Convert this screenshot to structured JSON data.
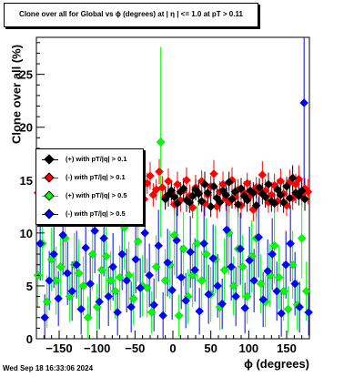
{
  "title": "Clone  over all for Global vs ϕ (degrees) at |  η | <= 1.0 at pT > 0.11",
  "timestamp": "Wed Sep 18 16:33:06 2024",
  "chart_data": {
    "type": "scatter",
    "xlabel": "ϕ (degrees)",
    "ylabel": "Clone  over all (%)",
    "xlim": [
      -180,
      180
    ],
    "ylim": [
      0,
      28.5
    ],
    "xticks": [
      -150,
      -100,
      -50,
      0,
      50,
      100,
      150
    ],
    "xtick_labels": [
      "−150",
      "−100",
      "−50",
      "0",
      "50",
      "100",
      "150"
    ],
    "yticks": [
      0,
      5,
      10,
      15,
      20,
      25
    ],
    "ytick_labels": [
      "0",
      "5",
      "10",
      "15",
      "20",
      "25"
    ],
    "legend_position": "left-middle",
    "series": [
      {
        "name": "(+) with pT/|q| > 0.1",
        "color": "#000000",
        "x": [
          -10,
          -6,
          -2,
          2,
          6,
          10,
          14,
          18,
          22,
          26,
          30,
          34,
          38,
          42,
          46,
          50,
          54,
          58,
          62,
          66,
          70,
          74,
          78,
          82,
          86,
          90,
          94,
          98,
          102,
          106,
          110,
          114,
          118,
          122,
          126,
          130,
          134,
          138,
          142,
          146,
          150,
          154,
          158,
          162,
          166,
          170,
          174
        ],
        "y": [
          13.2,
          13.6,
          14.0,
          13.4,
          12.8,
          13.9,
          14.2,
          13.1,
          12.9,
          13.5,
          14.1,
          13.7,
          13.0,
          14.6,
          13.8,
          12.5,
          14.4,
          13.3,
          12.9,
          14.0,
          13.6,
          14.8,
          13.2,
          13.9,
          12.7,
          14.2,
          13.5,
          13.1,
          14.0,
          13.8,
          12.6,
          14.3,
          13.7,
          13.4,
          14.6,
          13.0,
          12.8,
          14.1,
          13.6,
          12.9,
          14.4,
          13.3,
          15.2,
          13.8,
          13.5,
          14.0,
          13.2
        ],
        "err": [
          1.0,
          1.1,
          0.9,
          1.0,
          1.2,
          0.9,
          1.0,
          1.1,
          1.0,
          0.9,
          1.0,
          1.1,
          1.0,
          1.2,
          0.9,
          1.0,
          1.1,
          1.0,
          0.9,
          1.0,
          1.1,
          1.0,
          0.9,
          1.0,
          1.2,
          1.0,
          0.9,
          1.1,
          1.0,
          1.0,
          1.1,
          0.9,
          1.0,
          1.0,
          1.1,
          1.0,
          0.9,
          1.0,
          1.1,
          1.0,
          0.9,
          1.0,
          1.2,
          1.0,
          0.9,
          1.0,
          1.1
        ]
      },
      {
        "name": "(-) with pT/|q| > 0.1",
        "color": "#ff0000",
        "x": [
          -178,
          -174,
          -170,
          -166,
          -162,
          -158,
          -154,
          -150,
          -146,
          -142,
          -138,
          -134,
          -130,
          -126,
          -122,
          -118,
          -114,
          -110,
          -106,
          -102,
          -98,
          -94,
          -90,
          -86,
          -82,
          -78,
          -74,
          -70,
          -66,
          -62,
          -58,
          -54,
          -50,
          -46,
          -42,
          -38,
          -34,
          -30,
          -26,
          -22,
          -18,
          -14,
          -10,
          -6,
          -2,
          2,
          6,
          10,
          14,
          18,
          22,
          26,
          30,
          34,
          38,
          42,
          46,
          50,
          54,
          58,
          62,
          66,
          70,
          74,
          78,
          82,
          86,
          90,
          94,
          98,
          102,
          106,
          110,
          114,
          118,
          122,
          126,
          130,
          134,
          138,
          142,
          146,
          150,
          154,
          158,
          162,
          166,
          170,
          174,
          178
        ],
        "y": [
          13.8,
          14.4,
          13.2,
          14.9,
          13.6,
          12.8,
          14.2,
          13.5,
          14.8,
          13.0,
          14.5,
          13.9,
          12.7,
          14.1,
          15.3,
          13.4,
          14.7,
          13.1,
          12.6,
          14.3,
          13.8,
          14.9,
          13.3,
          12.9,
          14.6,
          13.7,
          14.2,
          13.0,
          14.8,
          15.1,
          13.5,
          12.8,
          14.4,
          13.9,
          14.0,
          13.2,
          14.7,
          15.4,
          13.6,
          14.1,
          15.8,
          14.3,
          13.4,
          14.9,
          13.8,
          12.7,
          14.6,
          13.1,
          14.0,
          15.0,
          13.5,
          12.4,
          14.3,
          13.8,
          14.9,
          12.8,
          13.6,
          14.4,
          15.6,
          12.5,
          13.9,
          14.6,
          13.2,
          12.9,
          15.0,
          13.4,
          14.1,
          12.6,
          13.8,
          14.7,
          13.5,
          12.2,
          14.3,
          13.9,
          15.5,
          14.0,
          12.9,
          13.6,
          14.5,
          13.0,
          14.9,
          13.7,
          12.6,
          14.8,
          13.3,
          14.6,
          15.1,
          13.6,
          14.2,
          13.9
        ],
        "err": [
          1.2,
          1.1,
          1.0,
          1.3,
          1.1,
          1.0,
          1.2,
          1.1,
          1.0,
          1.2,
          1.1,
          1.0,
          1.2,
          1.1,
          1.3,
          1.0,
          1.1,
          1.2,
          1.0,
          1.1,
          1.2,
          1.0,
          1.1,
          1.2,
          1.0,
          1.1,
          1.2,
          1.0,
          1.1,
          1.3,
          1.0,
          1.1,
          1.2,
          1.0,
          1.1,
          1.2,
          1.0,
          1.3,
          1.1,
          1.0,
          1.2,
          1.1,
          1.0,
          1.2,
          1.1,
          1.0,
          1.2,
          1.1,
          1.0,
          1.2,
          1.1,
          1.0,
          1.2,
          1.1,
          1.0,
          1.2,
          1.1,
          1.0,
          1.3,
          1.1,
          1.0,
          1.2,
          1.1,
          1.0,
          1.2,
          1.1,
          1.0,
          1.2,
          1.1,
          1.0,
          1.2,
          1.1,
          1.0,
          1.2,
          1.3,
          1.1,
          1.0,
          1.2,
          1.1,
          1.0,
          1.2,
          1.1,
          1.0,
          1.2,
          1.1,
          1.0,
          1.3,
          1.1,
          1.0,
          1.2
        ]
      },
      {
        "name": "(+) with pT/|q| > 0.5",
        "color": "#00ff00",
        "x": [
          -178,
          -172,
          -166,
          -160,
          -154,
          -148,
          -142,
          -136,
          -130,
          -124,
          -118,
          -112,
          -106,
          -100,
          -94,
          -88,
          -82,
          -76,
          -70,
          -64,
          -58,
          -52,
          -46,
          -40,
          -34,
          -28,
          -22,
          -16,
          -10,
          -4,
          2,
          8,
          14,
          20,
          26,
          32,
          38,
          44,
          50,
          56,
          62,
          68,
          74,
          80,
          86,
          92,
          98,
          104,
          110,
          116,
          122,
          128,
          134,
          140,
          146,
          152,
          158,
          164,
          170,
          176
        ],
        "y": [
          6.0,
          9.0,
          3.5,
          7.5,
          5.5,
          6.8,
          9.5,
          4.0,
          7.0,
          6.2,
          5.0,
          2.0,
          8.0,
          3.0,
          6.5,
          7.8,
          5.5,
          4.5,
          5.8,
          10.5,
          6.0,
          3.8,
          9.2,
          5.0,
          4.8,
          2.5,
          6.8,
          18.6,
          5.5,
          7.0,
          9.8,
          2.2,
          8.5,
          4.0,
          6.0,
          9.0,
          5.5,
          8.0,
          4.2,
          7.5,
          3.0,
          6.5,
          10.0,
          5.0,
          8.5,
          6.8,
          4.0,
          7.8,
          9.5,
          5.2,
          3.5,
          6.0,
          8.8,
          5.8,
          4.5,
          2.8,
          7.0,
          3.2,
          9.5,
          4.5
        ],
        "err": [
          3.0,
          3.5,
          2.5,
          3.0,
          3.2,
          2.8,
          3.6,
          2.4,
          3.0,
          3.2,
          2.8,
          2.0,
          3.4,
          2.2,
          3.0,
          3.5,
          2.8,
          2.6,
          3.0,
          4.0,
          3.2,
          2.5,
          3.8,
          2.9,
          2.8,
          2.0,
          3.0,
          9.0,
          3.0,
          3.2,
          3.8,
          2.0,
          3.5,
          2.6,
          3.0,
          3.6,
          2.8,
          3.4,
          2.6,
          3.2,
          2.2,
          3.0,
          4.0,
          2.8,
          3.5,
          3.0,
          2.6,
          3.4,
          3.8,
          2.8,
          2.4,
          3.0,
          3.6,
          3.0,
          2.8,
          2.2,
          3.2,
          2.4,
          3.8,
          2.8
        ]
      },
      {
        "name": "(-) with pT/|q| > 0.5",
        "color": "#0000ff",
        "x": [
          -175,
          -169,
          -163,
          -157,
          -151,
          -145,
          -139,
          -133,
          -127,
          -121,
          -115,
          -109,
          -103,
          -97,
          -91,
          -85,
          -79,
          -73,
          -67,
          -61,
          -55,
          -49,
          -43,
          -37,
          -31,
          -25,
          -19,
          -13,
          -7,
          -1,
          5,
          11,
          17,
          23,
          29,
          35,
          41,
          47,
          53,
          59,
          65,
          71,
          77,
          83,
          89,
          95,
          101,
          107,
          113,
          119,
          125,
          131,
          137,
          143,
          149,
          155,
          161,
          167,
          173,
          179
        ],
        "y": [
          9.0,
          2.0,
          5.5,
          8.0,
          3.8,
          9.8,
          6.2,
          4.5,
          7.0,
          2.8,
          8.6,
          5.2,
          10.2,
          3.5,
          9.5,
          4.0,
          6.8,
          2.5,
          8.0,
          5.5,
          3.0,
          7.5,
          4.8,
          10.0,
          6.0,
          3.2,
          8.8,
          2.2,
          7.2,
          4.6,
          9.3,
          5.8,
          3.6,
          8.2,
          6.5,
          2.6,
          9.0,
          4.2,
          7.6,
          5.0,
          3.3,
          10.3,
          6.8,
          4.0,
          8.5,
          2.9,
          7.4,
          5.5,
          9.6,
          3.7,
          6.4,
          8.0,
          4.5,
          2.4,
          7.0,
          9.0,
          5.2,
          3.0,
          22.3,
          2.5
        ],
        "err": [
          3.5,
          2.2,
          2.8,
          3.2,
          2.6,
          3.8,
          3.0,
          2.8,
          3.2,
          2.4,
          3.4,
          3.0,
          4.0,
          2.6,
          3.6,
          2.8,
          3.2,
          2.2,
          3.4,
          3.0,
          2.4,
          3.2,
          2.8,
          3.8,
          3.0,
          2.5,
          3.4,
          2.2,
          3.2,
          2.8,
          3.6,
          3.0,
          2.6,
          3.4,
          3.0,
          2.2,
          3.6,
          2.8,
          3.2,
          3.0,
          2.4,
          4.0,
          3.2,
          2.8,
          3.4,
          2.4,
          3.2,
          3.0,
          3.8,
          2.6,
          3.0,
          3.4,
          2.8,
          2.2,
          3.2,
          3.6,
          3.0,
          2.4,
          8.0,
          2.2
        ]
      }
    ]
  }
}
